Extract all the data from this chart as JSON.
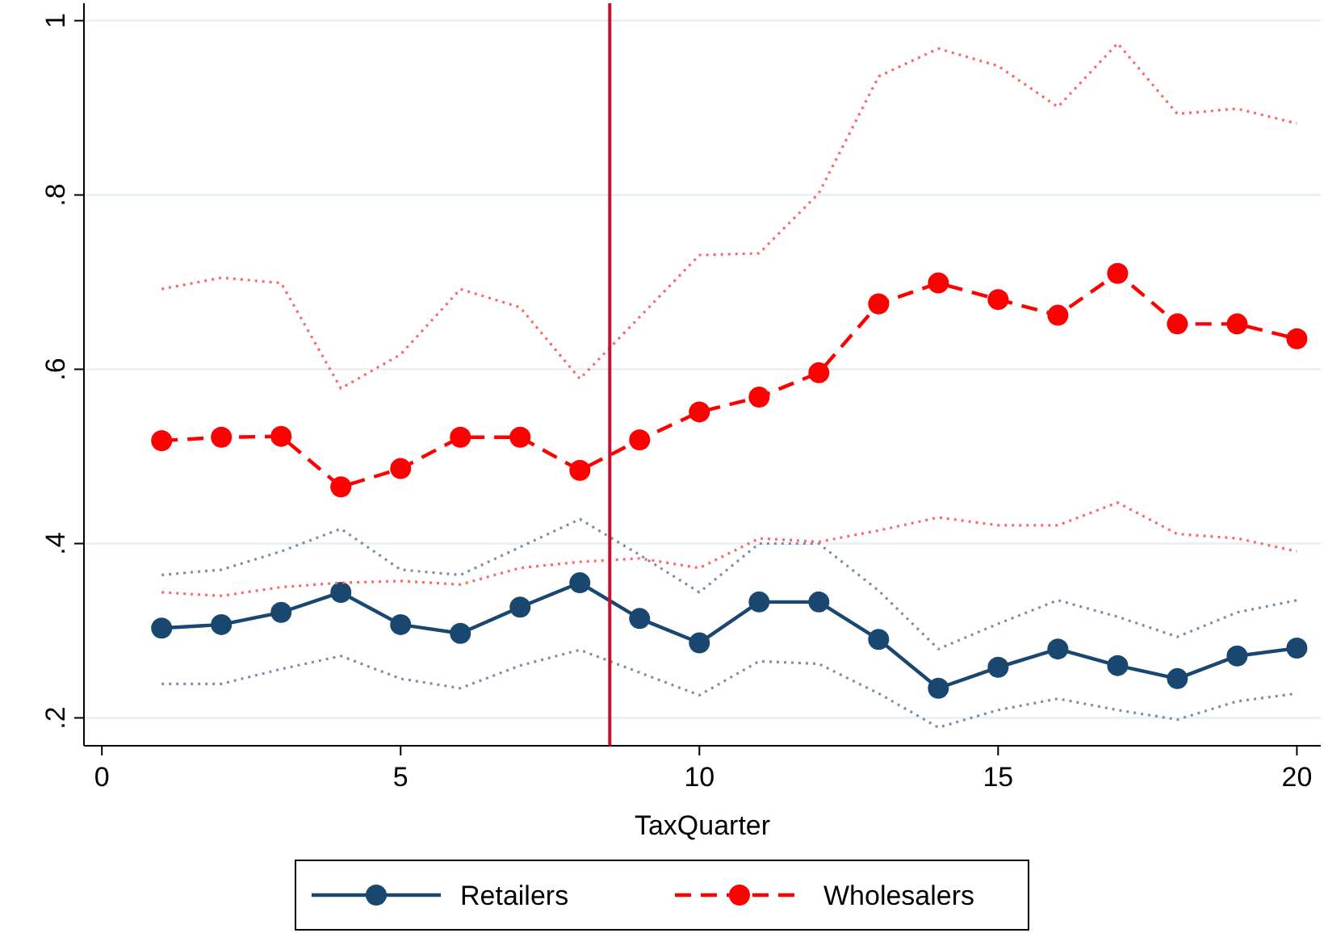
{
  "chart_data": {
    "type": "line",
    "xlabel": "TaxQuarter",
    "x": [
      1,
      2,
      3,
      4,
      5,
      6,
      7,
      8,
      9,
      10,
      11,
      12,
      13,
      14,
      15,
      16,
      17,
      18,
      19,
      20
    ],
    "series": [
      {
        "name": "Retailers",
        "color": "#1a476f",
        "marker": "circle",
        "line_style": "solid",
        "values": [
          0.303,
          0.307,
          0.321,
          0.344,
          0.307,
          0.297,
          0.327,
          0.355,
          0.314,
          0.286,
          0.333,
          0.333,
          0.29,
          0.234,
          0.258,
          0.279,
          0.26,
          0.245,
          0.271,
          0.28
        ]
      },
      {
        "name": "Wholesalers",
        "color": "#ff0000",
        "marker": "circle",
        "line_style": "dashed",
        "values": [
          0.518,
          0.522,
          0.523,
          0.465,
          0.486,
          0.522,
          0.522,
          0.484,
          0.519,
          0.551,
          0.568,
          0.596,
          0.675,
          0.699,
          0.68,
          0.662,
          0.71,
          0.652,
          0.652,
          0.635
        ]
      },
      {
        "color": "#7a8fa6",
        "marker": "none",
        "line_style": "dotted",
        "values": [
          0.239,
          0.239,
          0.256,
          0.271,
          0.245,
          0.234,
          0.26,
          0.278,
          0.252,
          0.226,
          0.265,
          0.262,
          0.228,
          0.189,
          0.209,
          0.222,
          0.209,
          0.198,
          0.219,
          0.228
        ]
      },
      {
        "color": "#7a8fa6",
        "marker": "none",
        "line_style": "dotted",
        "values": [
          0.364,
          0.37,
          0.391,
          0.417,
          0.37,
          0.364,
          0.396,
          0.428,
          0.387,
          0.344,
          0.4,
          0.4,
          0.346,
          0.279,
          0.308,
          0.335,
          0.316,
          0.293,
          0.321,
          0.335
        ]
      },
      {
        "color": "#ff6666",
        "marker": "none",
        "line_style": "dotted",
        "values": [
          0.344,
          0.34,
          0.35,
          0.355,
          0.357,
          0.353,
          0.372,
          0.379,
          0.383,
          0.372,
          0.406,
          0.402,
          0.415,
          0.43,
          0.421,
          0.421,
          0.447,
          0.411,
          0.406,
          0.391
        ]
      },
      {
        "color": "#ff6666",
        "marker": "none",
        "line_style": "dotted",
        "values": [
          0.692,
          0.705,
          0.699,
          0.578,
          0.617,
          0.692,
          0.671,
          0.589,
          0.66,
          0.731,
          0.733,
          0.802,
          0.936,
          0.968,
          0.948,
          0.901,
          0.974,
          0.893,
          0.899,
          0.882
        ]
      }
    ],
    "xlim": [
      -0.3,
      20.4
    ],
    "xticks": [
      0,
      5,
      10,
      15,
      20
    ],
    "ylim": [
      0.168,
      1.02
    ],
    "yticks": [
      {
        "value": 0.2,
        "label": ".2"
      },
      {
        "value": 0.4,
        "label": ".4"
      },
      {
        "value": 0.6,
        "label": ".6"
      },
      {
        "value": 0.8,
        "label": ".8"
      },
      {
        "value": 1,
        "label": "1"
      }
    ],
    "grid": "y",
    "legend": "bottom",
    "ref_lines": [
      {
        "axis": "x",
        "value": 8.5,
        "color": "#c8102e",
        "line_style": "solid"
      }
    ]
  }
}
